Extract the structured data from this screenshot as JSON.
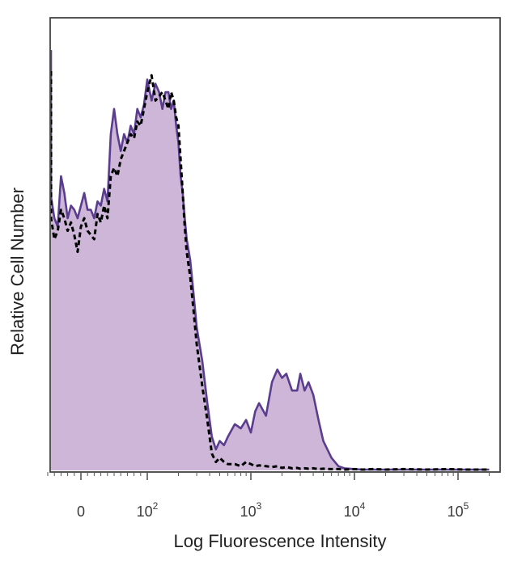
{
  "chart_data": {
    "type": "area",
    "title": "",
    "xlabel": "Log Fluorescence Intensity",
    "ylabel": "Relative Cell Number",
    "x_scale": "biexponential",
    "xlim": [
      -60,
      200000
    ],
    "ylim": [
      0,
      1
    ],
    "grid": false,
    "tick_labels": [
      {
        "value": 0,
        "base": "0",
        "exp": ""
      },
      {
        "value": 100,
        "base": "10",
        "exp": "2"
      },
      {
        "value": 1000,
        "base": "10",
        "exp": "3"
      },
      {
        "value": 10000,
        "base": "10",
        "exp": "4"
      },
      {
        "value": 100000,
        "base": "10",
        "exp": "5"
      }
    ],
    "series": [
      {
        "style": "filled-solid",
        "color": "#5b3d8f",
        "fill": "#cdb6d8",
        "x": [
          -50,
          -45,
          -40,
          -35,
          -30,
          -25,
          -20,
          -15,
          -10,
          -5,
          0,
          5,
          10,
          15,
          20,
          25,
          30,
          35,
          40,
          45,
          50,
          55,
          60,
          65,
          70,
          75,
          80,
          85,
          90,
          95,
          100,
          110,
          120,
          130,
          140,
          150,
          160,
          170,
          180,
          190,
          200,
          210,
          220,
          230,
          240,
          260,
          280,
          300,
          340,
          380,
          420,
          460,
          500,
          550,
          600,
          700,
          800,
          900,
          1000,
          1100,
          1200,
          1400,
          1600,
          1800,
          2000,
          2200,
          2500,
          2800,
          3000,
          3300,
          3600,
          4000,
          4500,
          5000,
          6000,
          7000,
          8000,
          10000,
          12000,
          15000,
          20000,
          30000,
          50000,
          80000,
          120000,
          200000
        ],
        "y": [
          1.0,
          0.65,
          0.6,
          0.58,
          0.7,
          0.66,
          0.6,
          0.63,
          0.62,
          0.6,
          0.63,
          0.66,
          0.62,
          0.62,
          0.6,
          0.64,
          0.63,
          0.67,
          0.64,
          0.8,
          0.86,
          0.8,
          0.76,
          0.8,
          0.78,
          0.82,
          0.8,
          0.86,
          0.84,
          0.87,
          0.93,
          0.88,
          0.92,
          0.9,
          0.86,
          0.9,
          0.9,
          0.86,
          0.88,
          0.82,
          0.78,
          0.7,
          0.66,
          0.6,
          0.55,
          0.5,
          0.42,
          0.34,
          0.26,
          0.16,
          0.08,
          0.05,
          0.07,
          0.06,
          0.08,
          0.11,
          0.1,
          0.12,
          0.09,
          0.14,
          0.16,
          0.13,
          0.21,
          0.24,
          0.22,
          0.23,
          0.19,
          0.19,
          0.23,
          0.19,
          0.21,
          0.18,
          0.12,
          0.07,
          0.03,
          0.01,
          0.005,
          0.003,
          0.002,
          0.002,
          0.002,
          0.002,
          0.002,
          0.002,
          0.002,
          0.002
        ]
      },
      {
        "style": "dashed",
        "color": "#000000",
        "x": [
          -50,
          -45,
          -40,
          -35,
          -30,
          -25,
          -20,
          -15,
          -10,
          -5,
          0,
          5,
          10,
          15,
          20,
          25,
          30,
          35,
          40,
          45,
          50,
          55,
          60,
          65,
          70,
          75,
          80,
          85,
          90,
          95,
          100,
          110,
          120,
          130,
          140,
          150,
          160,
          170,
          180,
          190,
          200,
          210,
          220,
          230,
          240,
          260,
          280,
          300,
          340,
          380,
          420,
          460,
          500,
          550,
          600,
          700,
          800,
          900,
          1000,
          1100,
          1200,
          1400,
          1600,
          1800,
          2000,
          2200,
          2500,
          2800,
          3000,
          3300,
          3600,
          4000,
          4500,
          5000,
          6000,
          7000,
          8000,
          10000,
          12000,
          15000,
          20000,
          30000,
          50000,
          80000,
          120000,
          200000
        ],
        "y": [
          0.95,
          0.6,
          0.55,
          0.57,
          0.62,
          0.6,
          0.57,
          0.59,
          0.56,
          0.52,
          0.58,
          0.6,
          0.57,
          0.56,
          0.55,
          0.61,
          0.59,
          0.63,
          0.6,
          0.7,
          0.72,
          0.7,
          0.74,
          0.76,
          0.78,
          0.8,
          0.79,
          0.83,
          0.82,
          0.86,
          0.9,
          0.94,
          0.88,
          0.89,
          0.9,
          0.88,
          0.86,
          0.9,
          0.88,
          0.84,
          0.82,
          0.74,
          0.66,
          0.58,
          0.52,
          0.46,
          0.38,
          0.3,
          0.2,
          0.12,
          0.04,
          0.02,
          0.03,
          0.02,
          0.015,
          0.015,
          0.01,
          0.02,
          0.015,
          0.01,
          0.012,
          0.01,
          0.008,
          0.01,
          0.006,
          0.008,
          0.005,
          0.006,
          0.004,
          0.005,
          0.004,
          0.005,
          0.003,
          0.004,
          0.003,
          0.003,
          0.002,
          0.003,
          0.002,
          0.003,
          0.002,
          0.003,
          0.002,
          0.003,
          0.002,
          0.002
        ]
      }
    ]
  }
}
